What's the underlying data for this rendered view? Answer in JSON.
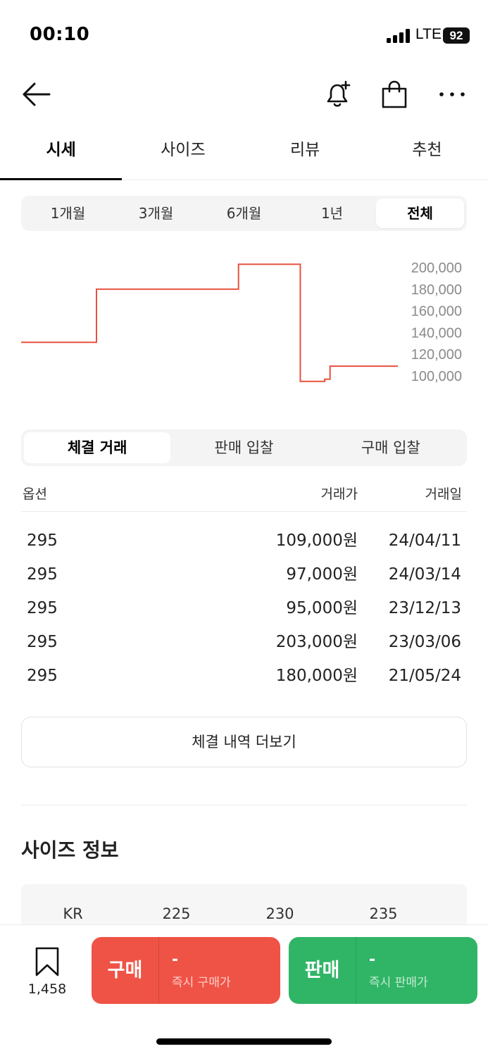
{
  "status_bar": {
    "time": "00:10",
    "network": "LTE",
    "battery": "92"
  },
  "main_tabs": [
    {
      "label": "시세",
      "active": true
    },
    {
      "label": "사이즈",
      "active": false
    },
    {
      "label": "리뷰",
      "active": false
    },
    {
      "label": "추천",
      "active": false
    }
  ],
  "period_tabs": [
    {
      "label": "1개월",
      "active": false
    },
    {
      "label": "3개월",
      "active": false
    },
    {
      "label": "6개월",
      "active": false
    },
    {
      "label": "1년",
      "active": false
    },
    {
      "label": "전체",
      "active": true
    }
  ],
  "chart_data": {
    "type": "line",
    "step": true,
    "color": "#e8503f",
    "y_ticks": [
      "200,000",
      "180,000",
      "160,000",
      "140,000",
      "120,000",
      "100,000"
    ],
    "ylim": [
      100000,
      200000
    ],
    "points": [
      {
        "x": "21/01",
        "y": 131000
      },
      {
        "x": "21/05/24",
        "y": 180000
      },
      {
        "x": "23/03/06",
        "y": 203000
      },
      {
        "x": "23/12/13",
        "y": 95000
      },
      {
        "x": "24/03/14",
        "y": 97000
      },
      {
        "x": "24/04/11",
        "y": 109000
      },
      {
        "x": "24/04",
        "y": 109000
      }
    ]
  },
  "trade_tabs": [
    {
      "label": "체결 거래",
      "active": true
    },
    {
      "label": "판매 입찰",
      "active": false
    },
    {
      "label": "구매 입찰",
      "active": false
    }
  ],
  "trade_table": {
    "headers": {
      "option": "옵션",
      "price": "거래가",
      "date": "거래일"
    },
    "rows": [
      {
        "option": "295",
        "price": "109,000원",
        "date": "24/04/11"
      },
      {
        "option": "295",
        "price": "97,000원",
        "date": "24/03/14"
      },
      {
        "option": "295",
        "price": "95,000원",
        "date": "23/12/13"
      },
      {
        "option": "295",
        "price": "203,000원",
        "date": "23/03/06"
      },
      {
        "option": "295",
        "price": "180,000원",
        "date": "21/05/24"
      }
    ]
  },
  "more_button_label": "체결 내역 더보기",
  "size_info": {
    "title": "사이즈 정보",
    "headers": [
      "KR",
      "225",
      "230",
      "235"
    ]
  },
  "bottom_bar": {
    "wish_count": "1,458",
    "buy": {
      "label": "구매",
      "price": "-",
      "sub": "즉시 구매가",
      "color": "#ef5346"
    },
    "sell": {
      "label": "판매",
      "price": "-",
      "sub": "즉시 판매가",
      "color": "#30b566"
    }
  }
}
